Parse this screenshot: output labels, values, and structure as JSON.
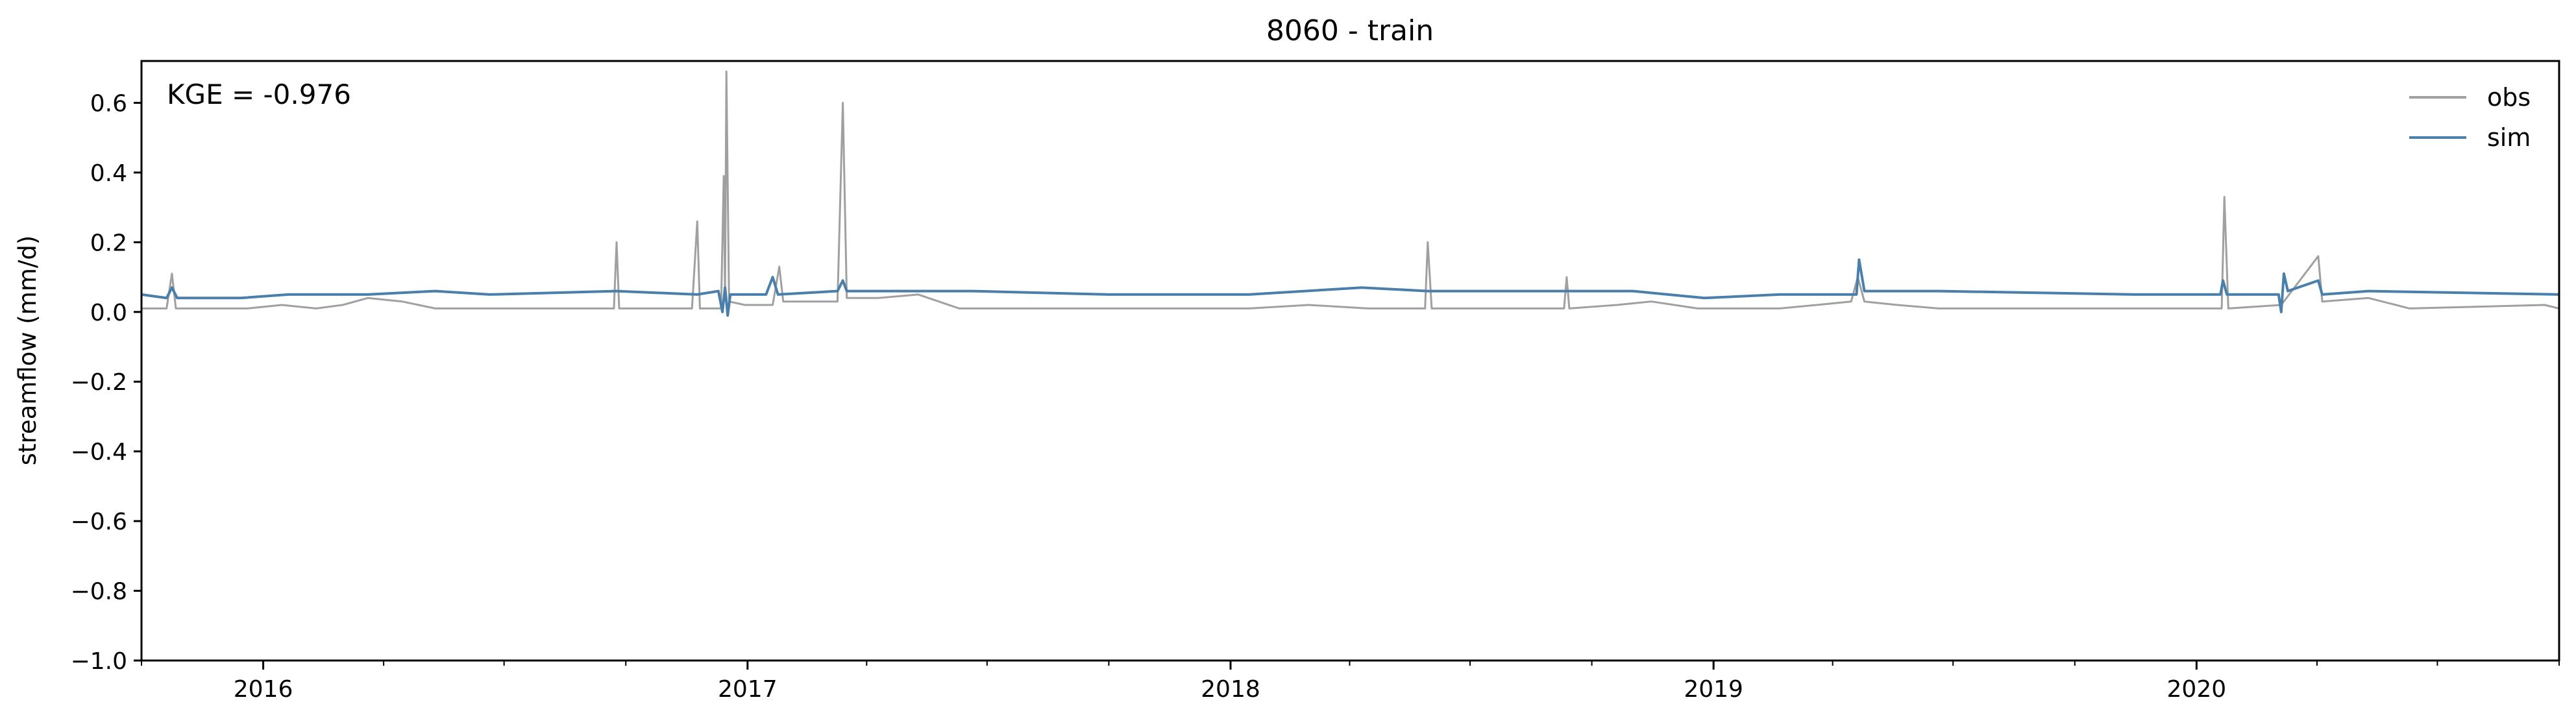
{
  "chart_data": {
    "type": "line",
    "title": "8060 - train",
    "xlabel": "",
    "ylabel": "streamflow (mm/d)",
    "annotation": "KGE = -0.976",
    "xlim": [
      "2015-10-01",
      "2020-10-01"
    ],
    "ylim": [
      -1.0,
      0.72
    ],
    "yticks": [
      {
        "value": 0.6,
        "label": "0.6"
      },
      {
        "value": 0.4,
        "label": "0.4"
      },
      {
        "value": 0.2,
        "label": "0.2"
      },
      {
        "value": 0.0,
        "label": "0.0"
      },
      {
        "value": -0.2,
        "label": "−0.2"
      },
      {
        "value": -0.4,
        "label": "−0.4"
      },
      {
        "value": -0.6,
        "label": "−0.6"
      },
      {
        "value": -0.8,
        "label": "−0.8"
      },
      {
        "value": -1.0,
        "label": "−1.0"
      }
    ],
    "xticks": [
      {
        "value": "2016-01-01",
        "label": "2016"
      },
      {
        "value": "2017-01-01",
        "label": "2017"
      },
      {
        "value": "2018-01-01",
        "label": "2018"
      },
      {
        "value": "2019-01-01",
        "label": "2019"
      },
      {
        "value": "2020-01-01",
        "label": "2020"
      }
    ],
    "grid": false,
    "legend": "top-right",
    "series": [
      {
        "name": "obs",
        "color": "#a0a0a0",
        "points": [
          [
            "2015-10-01",
            0.01
          ],
          [
            "2015-10-20",
            0.01
          ],
          [
            "2015-10-24",
            0.11
          ],
          [
            "2015-10-27",
            0.01
          ],
          [
            "2015-12-20",
            0.01
          ],
          [
            "2016-01-15",
            0.02
          ],
          [
            "2016-02-10",
            0.01
          ],
          [
            "2016-03-01",
            0.02
          ],
          [
            "2016-03-20",
            0.04
          ],
          [
            "2016-04-15",
            0.03
          ],
          [
            "2016-05-10",
            0.01
          ],
          [
            "2016-06-15",
            0.01
          ],
          [
            "2016-09-22",
            0.01
          ],
          [
            "2016-09-24",
            0.2
          ],
          [
            "2016-09-26",
            0.01
          ],
          [
            "2016-11-20",
            0.01
          ],
          [
            "2016-11-24",
            0.26
          ],
          [
            "2016-11-26",
            0.01
          ],
          [
            "2016-12-12",
            0.01
          ],
          [
            "2016-12-14",
            0.39
          ],
          [
            "2016-12-15",
            0.05
          ],
          [
            "2016-12-16",
            0.69
          ],
          [
            "2016-12-18",
            0.03
          ],
          [
            "2016-12-30",
            0.02
          ],
          [
            "2017-01-20",
            0.02
          ],
          [
            "2017-01-25",
            0.13
          ],
          [
            "2017-01-28",
            0.03
          ],
          [
            "2017-03-10",
            0.03
          ],
          [
            "2017-03-14",
            0.6
          ],
          [
            "2017-03-17",
            0.04
          ],
          [
            "2017-04-10",
            0.04
          ],
          [
            "2017-05-10",
            0.05
          ],
          [
            "2017-06-10",
            0.01
          ],
          [
            "2017-10-01",
            0.01
          ],
          [
            "2018-01-15",
            0.01
          ],
          [
            "2018-03-01",
            0.02
          ],
          [
            "2018-04-15",
            0.01
          ],
          [
            "2018-05-28",
            0.01
          ],
          [
            "2018-05-30",
            0.2
          ],
          [
            "2018-06-02",
            0.01
          ],
          [
            "2018-09-10",
            0.01
          ],
          [
            "2018-09-12",
            0.1
          ],
          [
            "2018-09-14",
            0.01
          ],
          [
            "2018-10-20",
            0.02
          ],
          [
            "2018-11-15",
            0.03
          ],
          [
            "2018-12-20",
            0.01
          ],
          [
            "2019-02-20",
            0.01
          ],
          [
            "2019-03-20",
            0.02
          ],
          [
            "2019-04-15",
            0.03
          ],
          [
            "2019-04-20",
            0.1
          ],
          [
            "2019-04-25",
            0.03
          ],
          [
            "2019-05-20",
            0.02
          ],
          [
            "2019-06-20",
            0.01
          ],
          [
            "2019-12-20",
            0.01
          ],
          [
            "2020-01-20",
            0.01
          ],
          [
            "2020-01-22",
            0.33
          ],
          [
            "2020-01-25",
            0.01
          ],
          [
            "2020-03-05",
            0.02
          ],
          [
            "2020-04-02",
            0.16
          ],
          [
            "2020-04-05",
            0.03
          ],
          [
            "2020-05-10",
            0.04
          ],
          [
            "2020-06-10",
            0.01
          ],
          [
            "2020-09-20",
            0.02
          ],
          [
            "2020-10-01",
            0.01
          ]
        ]
      },
      {
        "name": "sim",
        "color": "#4a7fab",
        "points": [
          [
            "2015-10-01",
            0.05
          ],
          [
            "2015-10-20",
            0.04
          ],
          [
            "2015-10-24",
            0.07
          ],
          [
            "2015-10-28",
            0.04
          ],
          [
            "2015-12-15",
            0.04
          ],
          [
            "2016-01-20",
            0.05
          ],
          [
            "2016-03-20",
            0.05
          ],
          [
            "2016-05-10",
            0.06
          ],
          [
            "2016-06-20",
            0.05
          ],
          [
            "2016-09-24",
            0.06
          ],
          [
            "2016-11-24",
            0.05
          ],
          [
            "2016-12-10",
            0.06
          ],
          [
            "2016-12-13",
            0.0
          ],
          [
            "2016-12-15",
            0.07
          ],
          [
            "2016-12-17",
            -0.01
          ],
          [
            "2016-12-19",
            0.05
          ],
          [
            "2017-01-15",
            0.05
          ],
          [
            "2017-01-20",
            0.1
          ],
          [
            "2017-01-24",
            0.05
          ],
          [
            "2017-03-10",
            0.06
          ],
          [
            "2017-03-14",
            0.09
          ],
          [
            "2017-03-17",
            0.06
          ],
          [
            "2017-06-20",
            0.06
          ],
          [
            "2017-10-01",
            0.05
          ],
          [
            "2018-01-15",
            0.05
          ],
          [
            "2018-04-10",
            0.07
          ],
          [
            "2018-05-30",
            0.06
          ],
          [
            "2018-09-12",
            0.06
          ],
          [
            "2018-11-01",
            0.06
          ],
          [
            "2018-12-25",
            0.04
          ],
          [
            "2019-02-20",
            0.05
          ],
          [
            "2019-04-19",
            0.05
          ],
          [
            "2019-04-21",
            0.15
          ],
          [
            "2019-04-25",
            0.06
          ],
          [
            "2019-06-20",
            0.06
          ],
          [
            "2019-11-15",
            0.05
          ],
          [
            "2020-01-19",
            0.05
          ],
          [
            "2020-01-21",
            0.09
          ],
          [
            "2020-01-24",
            0.05
          ],
          [
            "2020-03-03",
            0.05
          ],
          [
            "2020-03-05",
            0.0
          ],
          [
            "2020-03-07",
            0.11
          ],
          [
            "2020-03-10",
            0.06
          ],
          [
            "2020-04-02",
            0.09
          ],
          [
            "2020-04-05",
            0.05
          ],
          [
            "2020-05-10",
            0.06
          ],
          [
            "2020-10-01",
            0.05
          ]
        ]
      }
    ]
  }
}
